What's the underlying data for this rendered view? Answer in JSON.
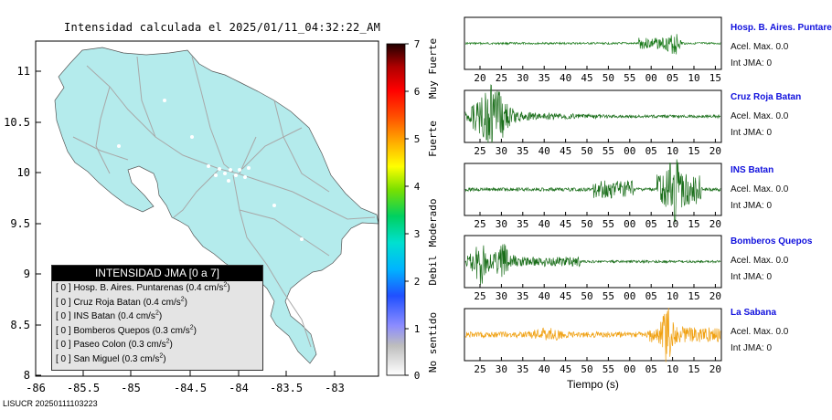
{
  "map": {
    "title": "Intensidad calculada el 2025/01/11_04:32:22_AM",
    "x_ticks": [
      "-86",
      "-85.5",
      "-85",
      "-84.5",
      "-84",
      "-83.5",
      "-83"
    ],
    "y_ticks": [
      "11",
      "10.5",
      "10",
      "9.5",
      "9",
      "8.5",
      "8"
    ],
    "land_color": "#b4ebec",
    "road_color": "#a8a8a8"
  },
  "colorbar": {
    "ticks": [
      "7",
      "6",
      "5",
      "4",
      "3",
      "2",
      "1",
      "0"
    ],
    "labels": [
      "Muy Fuerte",
      "Fuerte",
      "Moderado",
      "Debil",
      "No sentido"
    ]
  },
  "legend": {
    "header": "INTENSIDAD JMA [0 a 7]",
    "rows": [
      {
        "text": "[ 0 ]  Hosp. B. Aires. Puntarenas (0.4 cm/s",
        "sup": "2",
        "close": ")"
      },
      {
        "text": "[ 0 ]  Cruz Roja Batan (0.4 cm/s",
        "sup": "2",
        "close": ")"
      },
      {
        "text": "[ 0 ]  INS Batan (0.4 cm/s",
        "sup": "2",
        "close": ")"
      },
      {
        "text": "[ 0 ]  Bomberos Quepos (0.3 cm/s",
        "sup": "2",
        "close": ")"
      },
      {
        "text": "[ 0 ]  Paseo Colon (0.3 cm/s",
        "sup": "2",
        "close": ")"
      },
      {
        "text": "[ 0 ]  San Miguel (0.3 cm/s",
        "sup": "2",
        "close": ")"
      }
    ]
  },
  "traces": [
    {
      "name": "Hosp. B. Aires. Puntare",
      "acel": "Acel. Max. 0.0",
      "int": "Int JMA: 0",
      "ticks": [
        "20",
        "25",
        "30",
        "35",
        "40",
        "45",
        "50",
        "55",
        "00",
        "05",
        "10",
        "15"
      ],
      "color": "#1a7a1a"
    },
    {
      "name": "Cruz Roja Batan",
      "acel": "Acel. Max. 0.0",
      "int": "Int JMA: 0",
      "ticks": [
        "25",
        "30",
        "35",
        "40",
        "45",
        "50",
        "55",
        "00",
        "05",
        "10",
        "15",
        "20"
      ],
      "color": "#1a6e1a"
    },
    {
      "name": "INS Batan",
      "acel": "Acel. Max. 0.0",
      "int": "Int JMA: 0",
      "ticks": [
        "25",
        "30",
        "35",
        "40",
        "45",
        "50",
        "55",
        "00",
        "05",
        "10",
        "15",
        "20"
      ],
      "color": "#1a6e1a"
    },
    {
      "name": "Bomberos Quepos",
      "acel": "Acel. Max. 0.0",
      "int": "Int JMA: 0",
      "ticks": [
        "25",
        "30",
        "35",
        "40",
        "45",
        "50",
        "55",
        "00",
        "05",
        "10",
        "15",
        "20"
      ],
      "color": "#1a6e1a"
    },
    {
      "name": "La Sabana",
      "acel": "Acel. Max. 0.0",
      "int": "Int JMA: 0",
      "ticks": [
        "25",
        "30",
        "35",
        "40",
        "45",
        "50",
        "55",
        "00",
        "05",
        "10",
        "15",
        "20"
      ],
      "color": "#f0a010"
    }
  ],
  "xlabel": "Tiempo (s)",
  "credit": "LISUCR 20250111103223",
  "chart_data": [
    {
      "type": "heatmap",
      "title": "Intensidad calculada el 2025/01/11_04:32:22_AM",
      "xlim": [
        -86,
        -82.5
      ],
      "ylim": [
        8,
        11.3
      ],
      "x_tick_labels": [
        "-86",
        "-85.5",
        "-85",
        "-84.5",
        "-84",
        "-83.5",
        "-83"
      ],
      "y_tick_labels": [
        "8",
        "8.5",
        "9",
        "9.5",
        "10",
        "10.5",
        "11"
      ],
      "colorbar_range": [
        0,
        7
      ],
      "values": "0 everywhere (No sentido)"
    },
    {
      "type": "line",
      "xlabel": "Tiempo (s)",
      "series": [
        {
          "name": "Hosp. B. Aires. Puntare"
        },
        {
          "name": "Cruz Roja Batan"
        },
        {
          "name": "INS Batan"
        },
        {
          "name": "Bomberos Quepos"
        },
        {
          "name": "La Sabana"
        }
      ]
    }
  ]
}
